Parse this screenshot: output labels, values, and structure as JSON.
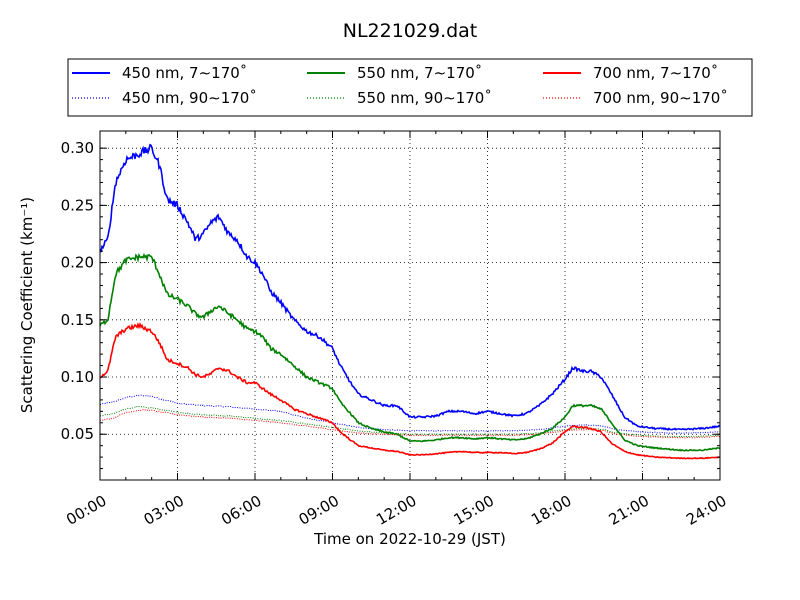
{
  "chart_data": {
    "type": "line",
    "title": "NL221029.dat",
    "xlabel": "Time on 2022-10-29 (JST)",
    "ylabel": "Scattering Coefficient (km⁻¹)",
    "xlim": [
      0,
      24
    ],
    "ylim": [
      0.01,
      0.315
    ],
    "x_ticks": [
      0,
      3,
      6,
      9,
      12,
      15,
      18,
      21,
      24
    ],
    "x_tick_labels": [
      "00:00",
      "03:00",
      "06:00",
      "09:00",
      "12:00",
      "15:00",
      "18:00",
      "21:00",
      "24:00"
    ],
    "y_ticks": [
      0.05,
      0.1,
      0.15,
      0.2,
      0.25,
      0.3
    ],
    "y_tick_labels": [
      "0.05",
      "0.10",
      "0.15",
      "0.20",
      "0.25",
      "0.30"
    ],
    "grid": true,
    "legend_placement": "top-outside",
    "series": [
      {
        "name": "450 nm, 7∼170˚",
        "color": "#0000ff",
        "style": "solid",
        "x": [
          0,
          0.3,
          0.6,
          1.0,
          1.5,
          2.0,
          2.3,
          2.6,
          3.0,
          3.4,
          3.7,
          4.0,
          4.3,
          4.6,
          5.0,
          5.3,
          5.7,
          6.0,
          6.3,
          6.6,
          7.0,
          7.5,
          8.0,
          8.5,
          9.0,
          9.3,
          9.7,
          10.0,
          10.5,
          11.0,
          11.5,
          12.0,
          12.5,
          13.0,
          13.5,
          14.0,
          14.5,
          15.0,
          15.5,
          16.0,
          16.5,
          17.0,
          17.5,
          18.0,
          18.3,
          18.7,
          19.0,
          19.4,
          19.8,
          20.3,
          20.8,
          21.5,
          22.5,
          23.3,
          24.0
        ],
        "values": [
          0.21,
          0.22,
          0.27,
          0.29,
          0.295,
          0.3,
          0.285,
          0.255,
          0.25,
          0.235,
          0.22,
          0.225,
          0.235,
          0.24,
          0.225,
          0.22,
          0.205,
          0.2,
          0.19,
          0.175,
          0.165,
          0.15,
          0.14,
          0.135,
          0.125,
          0.11,
          0.095,
          0.085,
          0.08,
          0.075,
          0.075,
          0.065,
          0.065,
          0.066,
          0.07,
          0.07,
          0.068,
          0.07,
          0.068,
          0.066,
          0.068,
          0.075,
          0.085,
          0.098,
          0.108,
          0.105,
          0.105,
          0.1,
          0.085,
          0.065,
          0.057,
          0.055,
          0.054,
          0.055,
          0.057
        ]
      },
      {
        "name": "450 nm, 90∼170˚",
        "color": "#0000ff",
        "style": "dotted",
        "x": [
          0,
          0.5,
          1.0,
          1.5,
          2.0,
          2.5,
          3.0,
          4.0,
          5.0,
          6.0,
          7.0,
          8.0,
          9.0,
          10.0,
          11.0,
          12.0,
          13.0,
          14.0,
          15.0,
          16.0,
          17.0,
          18.0,
          18.5,
          19.0,
          19.5,
          20.0,
          21.0,
          22.0,
          23.0,
          24.0
        ],
        "values": [
          0.076,
          0.078,
          0.082,
          0.084,
          0.083,
          0.08,
          0.077,
          0.075,
          0.074,
          0.072,
          0.07,
          0.064,
          0.06,
          0.056,
          0.054,
          0.053,
          0.053,
          0.053,
          0.053,
          0.053,
          0.054,
          0.057,
          0.058,
          0.058,
          0.057,
          0.054,
          0.052,
          0.051,
          0.051,
          0.052
        ]
      },
      {
        "name": "550 nm, 7∼170˚",
        "color": "#008000",
        "style": "solid",
        "x": [
          0,
          0.3,
          0.6,
          1.0,
          1.5,
          2.0,
          2.3,
          2.6,
          3.0,
          3.4,
          3.7,
          4.0,
          4.3,
          4.6,
          5.0,
          5.3,
          5.7,
          6.0,
          6.3,
          6.6,
          7.0,
          7.5,
          8.0,
          8.5,
          9.0,
          9.3,
          9.7,
          10.0,
          10.5,
          11.0,
          11.5,
          12.0,
          12.5,
          13.0,
          13.5,
          14.0,
          14.5,
          15.0,
          15.5,
          16.0,
          16.5,
          17.0,
          17.5,
          18.0,
          18.3,
          18.7,
          19.0,
          19.4,
          19.8,
          20.3,
          20.8,
          21.5,
          22.5,
          23.3,
          24.0
        ],
        "values": [
          0.145,
          0.15,
          0.19,
          0.202,
          0.205,
          0.205,
          0.19,
          0.172,
          0.168,
          0.162,
          0.155,
          0.152,
          0.158,
          0.162,
          0.155,
          0.15,
          0.142,
          0.14,
          0.135,
          0.125,
          0.12,
          0.11,
          0.1,
          0.095,
          0.09,
          0.078,
          0.068,
          0.06,
          0.055,
          0.052,
          0.05,
          0.044,
          0.044,
          0.045,
          0.047,
          0.047,
          0.046,
          0.047,
          0.046,
          0.045,
          0.046,
          0.05,
          0.055,
          0.065,
          0.075,
          0.075,
          0.075,
          0.072,
          0.06,
          0.045,
          0.04,
          0.038,
          0.036,
          0.036,
          0.038
        ]
      },
      {
        "name": "550 nm, 90∼170˚",
        "color": "#008000",
        "style": "dotted",
        "x": [
          0,
          0.5,
          1.0,
          1.5,
          2.0,
          2.5,
          3.0,
          4.0,
          5.0,
          6.0,
          7.0,
          8.0,
          9.0,
          10.0,
          11.0,
          12.0,
          13.0,
          14.0,
          15.0,
          16.0,
          17.0,
          18.0,
          18.5,
          19.0,
          19.5,
          20.0,
          21.0,
          22.0,
          23.0,
          24.0
        ],
        "values": [
          0.066,
          0.068,
          0.072,
          0.074,
          0.073,
          0.071,
          0.069,
          0.067,
          0.066,
          0.064,
          0.062,
          0.059,
          0.056,
          0.053,
          0.051,
          0.05,
          0.05,
          0.05,
          0.05,
          0.05,
          0.051,
          0.054,
          0.055,
          0.055,
          0.054,
          0.051,
          0.049,
          0.048,
          0.048,
          0.049
        ]
      },
      {
        "name": "700 nm, 7∼170˚",
        "color": "#ff0000",
        "style": "solid",
        "x": [
          0,
          0.3,
          0.6,
          1.0,
          1.5,
          2.0,
          2.3,
          2.6,
          3.0,
          3.4,
          3.7,
          4.0,
          4.3,
          4.6,
          5.0,
          5.3,
          5.7,
          6.0,
          6.3,
          6.6,
          7.0,
          7.5,
          8.0,
          8.5,
          9.0,
          9.3,
          9.7,
          10.0,
          10.5,
          11.0,
          11.5,
          12.0,
          12.5,
          13.0,
          13.5,
          14.0,
          14.5,
          15.0,
          15.5,
          16.0,
          16.5,
          17.0,
          17.5,
          18.0,
          18.3,
          18.7,
          19.0,
          19.4,
          19.8,
          20.3,
          20.8,
          21.5,
          22.5,
          23.3,
          24.0
        ],
        "values": [
          0.1,
          0.105,
          0.135,
          0.142,
          0.145,
          0.14,
          0.13,
          0.115,
          0.112,
          0.108,
          0.102,
          0.1,
          0.103,
          0.108,
          0.105,
          0.1,
          0.095,
          0.095,
          0.09,
          0.085,
          0.08,
          0.072,
          0.068,
          0.064,
          0.06,
          0.052,
          0.045,
          0.04,
          0.038,
          0.036,
          0.035,
          0.032,
          0.032,
          0.033,
          0.034,
          0.035,
          0.034,
          0.034,
          0.034,
          0.033,
          0.034,
          0.037,
          0.042,
          0.052,
          0.057,
          0.056,
          0.055,
          0.052,
          0.042,
          0.035,
          0.032,
          0.03,
          0.029,
          0.029,
          0.03
        ]
      },
      {
        "name": "700 nm, 90∼170˚",
        "color": "#ff0000",
        "style": "dotted",
        "x": [
          0,
          0.5,
          1.0,
          1.5,
          2.0,
          2.5,
          3.0,
          4.0,
          5.0,
          6.0,
          7.0,
          8.0,
          9.0,
          10.0,
          11.0,
          12.0,
          13.0,
          14.0,
          15.0,
          16.0,
          17.0,
          18.0,
          18.5,
          19.0,
          19.5,
          20.0,
          21.0,
          22.0,
          23.0,
          24.0
        ],
        "values": [
          0.062,
          0.064,
          0.069,
          0.071,
          0.071,
          0.069,
          0.067,
          0.065,
          0.064,
          0.062,
          0.06,
          0.057,
          0.054,
          0.051,
          0.05,
          0.049,
          0.049,
          0.049,
          0.049,
          0.049,
          0.05,
          0.053,
          0.054,
          0.054,
          0.053,
          0.05,
          0.048,
          0.047,
          0.047,
          0.048
        ]
      }
    ]
  }
}
